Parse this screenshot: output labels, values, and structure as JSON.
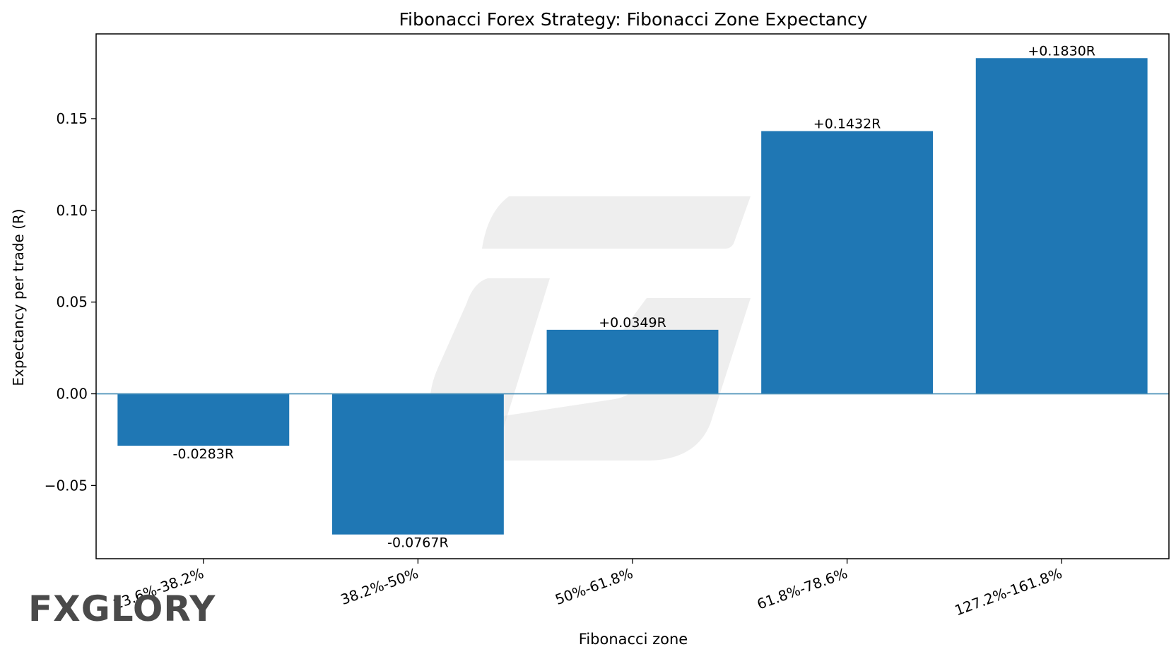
{
  "brand": {
    "logo_text": "FXGLORY",
    "logo_color": "#4a4a4a",
    "logo_accent": "#e8762b"
  },
  "chart_data": {
    "type": "bar",
    "title": "Fibonacci Forex Strategy: Fibonacci Zone Expectancy",
    "xlabel": "Fibonacci zone",
    "ylabel": "Expectancy per trade (R)",
    "categories": [
      "23.6%-38.2%",
      "38.2%-50%",
      "50%-61.8%",
      "61.8%-78.6%",
      "127.2%-161.8%"
    ],
    "values": [
      -0.0283,
      -0.0767,
      0.0349,
      0.1432,
      0.183
    ],
    "data_labels": [
      "-0.0283R",
      "-0.0767R",
      "+0.0349R",
      "+0.1432R",
      "+0.1830R"
    ],
    "ylim": [
      -0.0899,
      0.1962
    ],
    "yticks": [
      -0.05,
      0.0,
      0.05,
      0.1,
      0.15
    ],
    "ytick_labels": [
      "−0.05",
      "0.00",
      "0.05",
      "0.10",
      "0.15"
    ],
    "bar_color": "#1f77b4",
    "zero_line_color": "#4a90b8",
    "grid": false,
    "legend": "none"
  }
}
